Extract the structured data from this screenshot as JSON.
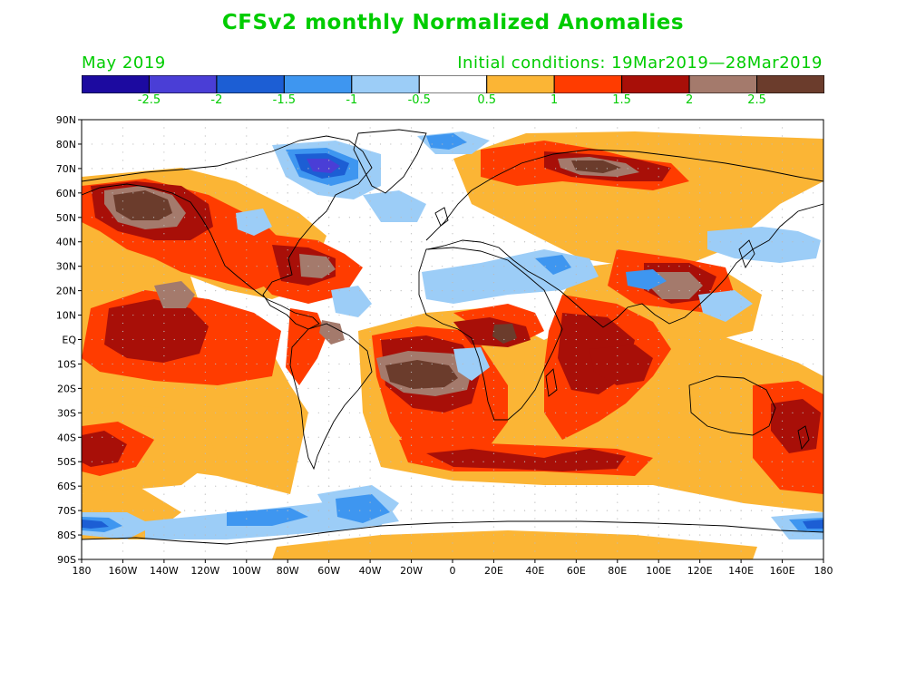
{
  "header": {
    "title": "CFSv2 monthly Normalized Anomalies",
    "valid_month": "May 2019",
    "initial_conditions": "Initial conditions: 19Mar2019—28Mar2019"
  },
  "colors": {
    "text": "#00cc00",
    "scale": [
      "#1c0aa0",
      "#4a3ed6",
      "#1c5ed4",
      "#3e96f0",
      "#9ccdf7",
      "#ffffff",
      "#fbb535",
      "#ff3c00",
      "#a80f08",
      "#a47a6c",
      "#6b3c2c"
    ],
    "land_outline": "#000000",
    "grid": "#bbbbbb"
  },
  "legend": {
    "labels": [
      "-2.5",
      "-2",
      "-1.5",
      "-1",
      "-0.5",
      "0.5",
      "1",
      "1.5",
      "2",
      "2.5"
    ]
  },
  "axes": {
    "lat_labels": [
      "90N",
      "80N",
      "70N",
      "60N",
      "50N",
      "40N",
      "30N",
      "20N",
      "10N",
      "EQ",
      "10S",
      "20S",
      "30S",
      "40S",
      "50S",
      "60S",
      "70S",
      "80S",
      "90S"
    ],
    "lon_labels": [
      "180",
      "160W",
      "140W",
      "120W",
      "100W",
      "80W",
      "60W",
      "40W",
      "20W",
      "0",
      "20E",
      "40E",
      "60E",
      "80E",
      "100E",
      "120E",
      "140E",
      "160E",
      "180"
    ]
  }
}
